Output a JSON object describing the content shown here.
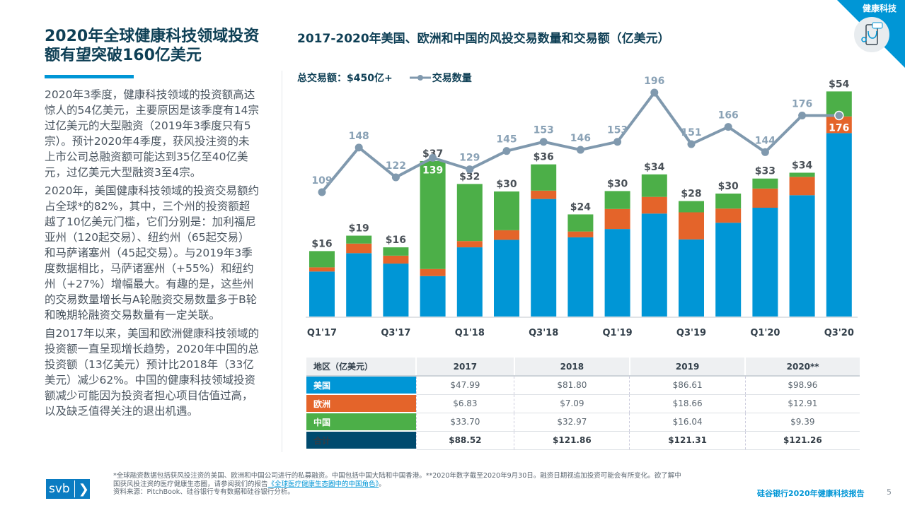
{
  "title": "2020年全球健康科技领域投资额有望突破160亿美元",
  "body": [
    "2020年3季度，健康科技领域的投资额高达惊人的54亿美元，主要原因是该季度有14宗过亿美元的大型融资（2019年3季度只有5宗）。预计2020年4季度，获风投注资的未上市公司总融资额可能达到35亿至40亿美元，过亿美元大型融资3至4宗。",
    "2020年，美国健康科技领域的投资交易额约占全球*的82%，其中，三个州的投资额超越了10亿美元门槛，它们分别是：加利福尼亚州（120起交易）、纽约州（65起交易）和马萨诸塞州（45起交易）。与2019年3季度数据相比，马萨诸塞州（+55%）和纽约州（+27%）增幅最大。有趣的是，这些州的交易数量增长与A轮融资交易数量多于B轮和晚期轮融资交易数量有一定关联。",
    "自2017年以来，美国和欧洲健康科技领域的投资额一直呈现增长趋势，2020年中国的总投资额（13亿美元）预计比2018年（33亿美元）减少62%。中国的健康科技领域投资额减少可能因为投资者担心项目估值过高，以及缺乏值得关注的退出机遇。"
  ],
  "corner": {
    "label": "健康科技",
    "icon": "phone-stethoscope-icon"
  },
  "chart_data": {
    "type": "bar",
    "stacked": true,
    "title": "2017-2020年美国、欧洲和中国的风投交易数量和交易额（亿美元）",
    "total_label": "总交易额：$450亿+",
    "line_legend": "交易数量",
    "categories": [
      "Q1'17",
      "Q2'17",
      "Q3'17",
      "Q4'17",
      "Q1'18",
      "Q2'18",
      "Q3'18",
      "Q4'18",
      "Q1'19",
      "Q2'19",
      "Q3'19",
      "Q4'19",
      "Q1'20",
      "Q2'20",
      "Q3'20"
    ],
    "tick_labels": [
      "Q1'17",
      "",
      "Q3'17",
      "",
      "Q1'18",
      "",
      "Q3'18",
      "",
      "Q1'19",
      "",
      "Q3'19",
      "",
      "Q1'20",
      "",
      "Q3'20"
    ],
    "series": [
      {
        "key": "us",
        "color": "#0096d6",
        "values": [
          10.8,
          15.2,
          12.7,
          9.7,
          16.6,
          18.4,
          28.2,
          19.0,
          21.0,
          24.7,
          18.5,
          22.5,
          26.1,
          29.1,
          44.0
        ]
      },
      {
        "key": "eu",
        "color": "#e4642a",
        "values": [
          1.0,
          2.3,
          1.9,
          1.7,
          1.5,
          2.3,
          2.0,
          1.4,
          4.8,
          4.0,
          6.5,
          3.4,
          4.6,
          4.4,
          4.0
        ]
      },
      {
        "key": "cn",
        "color": "#4caf48",
        "values": [
          3.9,
          1.9,
          2.0,
          25.9,
          13.7,
          9.3,
          6.3,
          4.1,
          4.3,
          5.4,
          2.7,
          3.6,
          2.4,
          1.0,
          6.0
        ]
      }
    ],
    "totals": [
      "$16",
      "$19",
      "$16",
      "$37",
      "$32",
      "$30",
      "$36",
      "$24",
      "$30",
      "$34",
      "$28",
      "$30",
      "$33",
      "$34",
      "$54"
    ],
    "deal_counts": [
      109,
      148,
      122,
      139,
      129,
      145,
      153,
      146,
      153,
      196,
      151,
      166,
      144,
      176,
      176
    ],
    "line_color": "#8099ae",
    "ylim": [
      0,
      56
    ]
  },
  "table": {
    "headers": [
      "地区（亿美元）",
      "2017",
      "2018",
      "2019",
      "2020**"
    ],
    "rows": [
      {
        "label": "美国",
        "color": "#0096d6",
        "values": [
          "$47.99",
          "$81.80",
          "$86.61",
          "$98.96"
        ]
      },
      {
        "label": "欧洲",
        "color": "#e4642a",
        "values": [
          "$6.83",
          "$7.09",
          "$18.66",
          "$12.91"
        ]
      },
      {
        "label": "中国",
        "color": "#4caf48",
        "values": [
          "$33.70",
          "$32.97",
          "$16.04",
          "$9.39"
        ]
      },
      {
        "label": "合计",
        "color": "#004a6e",
        "values": [
          "$88.52",
          "$121.86",
          "$121.31",
          "$121.26"
        ]
      }
    ]
  },
  "footer": {
    "logo": "svb",
    "note1": "*全球融资数据包括获风投注资的美国、欧洲和中国公司进行的私募融资。中国包括中国大陆和中国香港。**2020年数字截至2020年9月30日。融资日期视追加投资可能会有所变化。欲了解中国获风投注资的医疗健康生态圈，请参阅我们的报告",
    "link": "《全球医疗健康生态圈中的中国角色》",
    "note_end": "。",
    "source": "资料来源：PitchBook、硅谷银行专有数据和硅谷银行分析。",
    "report": "硅谷银行2020年健康科技报告",
    "page": "5"
  }
}
